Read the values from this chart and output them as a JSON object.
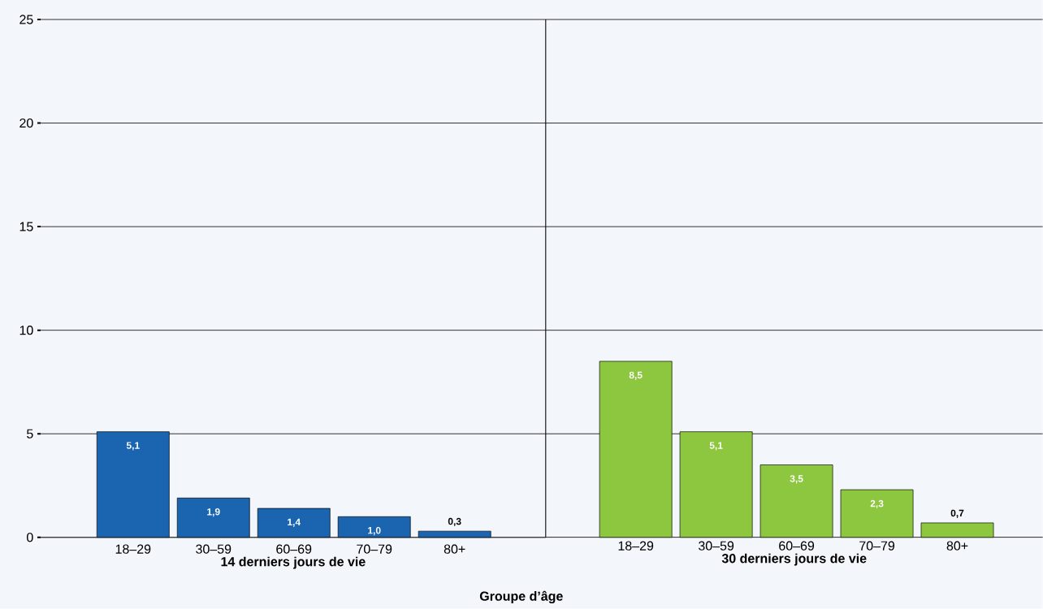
{
  "chart_data": [
    {
      "type": "bar",
      "categories": [
        "18–29",
        "30–59",
        "60–69",
        "70–79",
        "80+"
      ],
      "values": [
        5.1,
        1.9,
        1.4,
        1.0,
        0.3
      ],
      "value_labels": [
        "5,1",
        "1,9",
        "1,4",
        "1,0",
        "0,3"
      ],
      "color": "#1a64b0",
      "xlabel": "14 derniers jours de vie",
      "ylim": [
        0,
        25
      ],
      "yticks": [
        0,
        5,
        10,
        15,
        20,
        25
      ],
      "grid": "y",
      "annotations": [
        "Groupe d’âge"
      ]
    },
    {
      "type": "bar",
      "categories": [
        "18–29",
        "30–59",
        "60–69",
        "70–79",
        "80+"
      ],
      "values": [
        8.5,
        5.1,
        3.5,
        2.3,
        0.7
      ],
      "value_labels": [
        "8,5",
        "5,1",
        "3,5",
        "2,3",
        "0,7"
      ],
      "color": "#8dc63f",
      "xlabel": "30 derniers jours de vie",
      "ylim": [
        0,
        25
      ],
      "yticks": [
        0,
        5,
        10,
        15,
        20,
        25
      ],
      "grid": "y",
      "tick_labels": "x"
    }
  ]
}
